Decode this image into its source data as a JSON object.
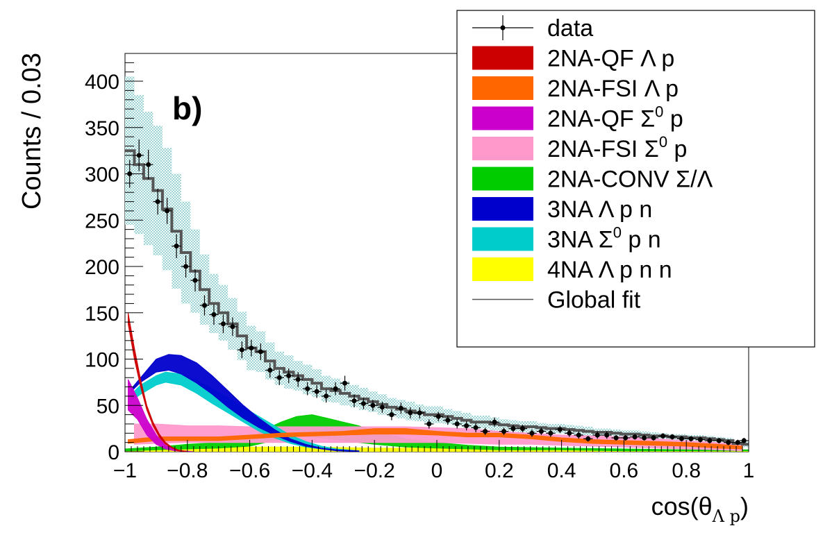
{
  "chart_data": {
    "type": "histogram",
    "panel_label": "b)",
    "ylabel": "Counts / 0.03",
    "xlabel": {
      "prefix": "cos(θ",
      "subscript": "Λ p",
      "suffix": ")"
    },
    "xlim": [
      -1,
      1
    ],
    "ylim": [
      0,
      430
    ],
    "xticks": [
      -1,
      -0.8,
      -0.6,
      -0.4,
      -0.2,
      0,
      0.2,
      0.4,
      0.6,
      0.8,
      1
    ],
    "xtick_labels": [
      "−1",
      "−0.8",
      "−0.6",
      "−0.4",
      "−0.2",
      "0",
      "0.2",
      "0.4",
      "0.6",
      "0.8",
      "1"
    ],
    "yticks": [
      0,
      50,
      100,
      150,
      200,
      250,
      300,
      350,
      400
    ],
    "ytick_labels": [
      "0",
      "50",
      "100",
      "150",
      "200",
      "250",
      "300",
      "350",
      "400"
    ],
    "legend": {
      "position": "top-right",
      "entries": [
        {
          "label": "data",
          "style": "marker",
          "color": "#000000"
        },
        {
          "label": "2NA-QF Λ p",
          "style": "box",
          "color": "#cc0000"
        },
        {
          "label": "2NA-FSI Λ p",
          "style": "box",
          "color": "#ff6600"
        },
        {
          "label": "2NA-QF Σ0 p",
          "style": "box",
          "color": "#cc00cc"
        },
        {
          "label": "2NA-FSI Σ0 p",
          "style": "box",
          "color": "#ff99cc"
        },
        {
          "label": "2NA-CONV Σ/Λ",
          "style": "box",
          "color": "#00cc00"
        },
        {
          "label": "3NA Λ p n",
          "style": "box",
          "color": "#0000cc"
        },
        {
          "label": "3NA Σ0 p n",
          "style": "box",
          "color": "#00cccc"
        },
        {
          "label": "4NA Λ p n n",
          "style": "box",
          "color": "#ffff00"
        },
        {
          "label": "Global fit",
          "style": "line",
          "color": "#555555"
        }
      ]
    },
    "data": {
      "x": [
        -0.985,
        -0.955,
        -0.925,
        -0.895,
        -0.865,
        -0.835,
        -0.805,
        -0.775,
        -0.745,
        -0.715,
        -0.685,
        -0.655,
        -0.625,
        -0.595,
        -0.565,
        -0.535,
        -0.505,
        -0.475,
        -0.445,
        -0.415,
        -0.385,
        -0.355,
        -0.325,
        -0.295,
        -0.265,
        -0.235,
        -0.205,
        -0.175,
        -0.145,
        -0.115,
        -0.085,
        -0.055,
        -0.025,
        0.005,
        0.035,
        0.065,
        0.095,
        0.125,
        0.155,
        0.185,
        0.215,
        0.245,
        0.275,
        0.305,
        0.335,
        0.365,
        0.395,
        0.425,
        0.455,
        0.485,
        0.515,
        0.545,
        0.575,
        0.605,
        0.635,
        0.665,
        0.695,
        0.725,
        0.755,
        0.785,
        0.815,
        0.845,
        0.875,
        0.905,
        0.935,
        0.965,
        0.985
      ],
      "y": [
        300,
        320,
        310,
        270,
        260,
        222,
        200,
        185,
        158,
        148,
        138,
        135,
        110,
        112,
        108,
        88,
        80,
        82,
        78,
        68,
        65,
        60,
        68,
        74,
        55,
        52,
        50,
        48,
        40,
        47,
        42,
        42,
        30,
        38,
        34,
        30,
        28,
        26,
        22,
        32,
        22,
        25,
        25,
        20,
        22,
        20,
        24,
        20,
        18,
        14,
        18,
        18,
        15,
        15,
        16,
        15,
        15,
        17,
        16,
        14,
        14,
        13,
        12,
        12,
        10,
        10,
        12
      ],
      "yerr": [
        15,
        17,
        16,
        14,
        14,
        13,
        12,
        12,
        11,
        11,
        10,
        10,
        9,
        9,
        9,
        8,
        8,
        8,
        8,
        7,
        7,
        7,
        7,
        8,
        7,
        6,
        6,
        6,
        6,
        6,
        6,
        6,
        5,
        5,
        5,
        5,
        5,
        5,
        4,
        5,
        4,
        4,
        4,
        4,
        4,
        4,
        4,
        4,
        4,
        3,
        4,
        4,
        3,
        3,
        3,
        3,
        3,
        3,
        3,
        3,
        3,
        3,
        3,
        3,
        3,
        3,
        3
      ]
    },
    "global_fit": {
      "edges": [
        -1,
        -0.97,
        -0.94,
        -0.91,
        -0.88,
        -0.85,
        -0.82,
        -0.79,
        -0.76,
        -0.73,
        -0.7,
        -0.67,
        -0.64,
        -0.61,
        -0.58,
        -0.55,
        -0.52,
        -0.49,
        -0.46,
        -0.43,
        -0.4,
        -0.37,
        -0.34,
        -0.31,
        -0.28,
        -0.25,
        -0.22,
        -0.19,
        -0.16,
        -0.13,
        -0.1,
        -0.07,
        -0.04,
        -0.01,
        0.02,
        0.05,
        0.08,
        0.11,
        0.14,
        0.17,
        0.2,
        0.23,
        0.26,
        0.29,
        0.32,
        0.35,
        0.38,
        0.41,
        0.44,
        0.47,
        0.5,
        0.53,
        0.56,
        0.59,
        0.62,
        0.65,
        0.68,
        0.71,
        0.74,
        0.77,
        0.8,
        0.83,
        0.86,
        0.89,
        0.92,
        0.95,
        0.98,
        1
      ],
      "values": [
        325,
        310,
        295,
        282,
        262,
        238,
        215,
        195,
        175,
        160,
        150,
        138,
        125,
        112,
        108,
        98,
        90,
        86,
        82,
        78,
        74,
        68,
        66,
        63,
        60,
        57,
        54,
        51,
        48,
        46,
        44,
        42,
        40,
        40,
        38,
        36,
        34,
        32,
        32,
        30,
        29,
        28,
        27,
        27,
        26,
        25,
        25,
        24,
        23,
        22,
        21,
        21,
        20,
        19,
        19,
        18,
        17,
        17,
        16,
        16,
        15,
        15,
        14,
        13,
        12,
        9,
        8
      ],
      "band_halfwidth": [
        80,
        75,
        72,
        70,
        66,
        62,
        55,
        45,
        38,
        32,
        30,
        28,
        26,
        24,
        22,
        20,
        18,
        18,
        16,
        16,
        15,
        14,
        13,
        13,
        12,
        12,
        11,
        11,
        10,
        10,
        10,
        9,
        9,
        9,
        8,
        8,
        8,
        7,
        7,
        7,
        6,
        6,
        6,
        6,
        5,
        5,
        5,
        5,
        5,
        5,
        4,
        4,
        4,
        4,
        4,
        4,
        4,
        3,
        3,
        3,
        3,
        3,
        3,
        3,
        3,
        3,
        3
      ]
    },
    "components": [
      {
        "name": "4NA Λ p n n",
        "color": "#ffff00",
        "x": [
          -1,
          -0.8,
          -0.6,
          -0.4,
          -0.2,
          0,
          0.2,
          0.4,
          0.6,
          0.8,
          1
        ],
        "low": [
          0,
          0,
          0,
          0,
          0,
          0,
          0,
          0,
          0,
          0,
          0
        ],
        "high": [
          2,
          4,
          5,
          5,
          4,
          4,
          3,
          3,
          2,
          2,
          1
        ]
      },
      {
        "name": "2NA-CONV Σ/Λ",
        "color": "#00cc00",
        "x": [
          -1,
          -0.9,
          -0.8,
          -0.7,
          -0.6,
          -0.55,
          -0.5,
          -0.45,
          -0.4,
          -0.35,
          -0.3,
          -0.25,
          -0.2,
          -0.1,
          0,
          0.1,
          0.2,
          0.4,
          0.6,
          0.8,
          1
        ],
        "low": [
          1,
          2,
          3,
          4,
          6,
          10,
          14,
          16,
          16,
          14,
          12,
          10,
          8,
          5,
          4,
          3,
          2,
          2,
          1,
          1,
          1
        ],
        "high": [
          3,
          5,
          8,
          10,
          14,
          24,
          32,
          38,
          40,
          36,
          32,
          28,
          22,
          14,
          10,
          7,
          5,
          4,
          3,
          2,
          2
        ]
      },
      {
        "name": "2NA-FSI Σ0 p",
        "color": "#ff99cc",
        "x": [
          -0.97,
          -0.9,
          -0.8,
          -0.7,
          -0.6,
          -0.5,
          -0.4,
          -0.3,
          -0.2,
          -0.1,
          0,
          0.1,
          0.2,
          0.3,
          0.4,
          0.5,
          0.6,
          0.7,
          0.8,
          0.9,
          0.98
        ],
        "low": [
          8,
          9,
          10,
          10,
          10,
          10,
          10,
          10,
          10,
          10,
          10,
          9,
          8,
          8,
          7,
          6,
          5,
          4,
          3,
          2,
          1
        ],
        "high": [
          30,
          30,
          28,
          28,
          27,
          27,
          27,
          27,
          27,
          27,
          26,
          25,
          22,
          20,
          18,
          17,
          16,
          14,
          12,
          10,
          8
        ]
      },
      {
        "name": "3NA Σ0 p n",
        "color": "#00cccc",
        "x": [
          -0.98,
          -0.95,
          -0.9,
          -0.87,
          -0.82,
          -0.77,
          -0.72,
          -0.67,
          -0.62,
          -0.57,
          -0.52,
          -0.47,
          -0.42,
          -0.37,
          -0.32,
          -0.25
        ],
        "low": [
          55,
          62,
          72,
          75,
          72,
          63,
          52,
          42,
          32,
          22,
          15,
          9,
          5,
          3,
          1,
          0
        ],
        "high": [
          62,
          72,
          82,
          86,
          84,
          77,
          68,
          58,
          48,
          38,
          28,
          18,
          11,
          6,
          3,
          1
        ]
      },
      {
        "name": "3NA Λ p n",
        "color": "#0000cc",
        "x": [
          -0.98,
          -0.95,
          -0.9,
          -0.86,
          -0.82,
          -0.77,
          -0.72,
          -0.67,
          -0.62,
          -0.57,
          -0.52,
          -0.47,
          -0.42,
          -0.37,
          -0.32,
          -0.25
        ],
        "low": [
          65,
          75,
          86,
          88,
          84,
          74,
          62,
          48,
          36,
          26,
          18,
          11,
          6,
          3,
          1,
          0
        ],
        "high": [
          68,
          80,
          100,
          105,
          104,
          96,
          82,
          66,
          50,
          36,
          24,
          14,
          8,
          4,
          2,
          1
        ]
      },
      {
        "name": "2NA-FSI Λ p",
        "color": "#ff6600",
        "x": [
          -0.99,
          -0.9,
          -0.8,
          -0.7,
          -0.6,
          -0.5,
          -0.4,
          -0.3,
          -0.2,
          -0.1,
          0,
          0.1,
          0.2,
          0.3,
          0.4,
          0.5,
          0.6,
          0.7,
          0.8,
          0.9,
          0.98
        ],
        "low": [
          9,
          12,
          12,
          12,
          14,
          16,
          17,
          18,
          19,
          19,
          18,
          16,
          16,
          14,
          11,
          9,
          8,
          7,
          6,
          4,
          3
        ],
        "high": [
          13,
          16,
          16,
          16,
          18,
          20,
          21,
          22,
          25,
          25,
          22,
          20,
          20,
          18,
          15,
          13,
          12,
          11,
          10,
          8,
          6
        ]
      },
      {
        "name": "2NA-QF Σ0 p",
        "color": "#cc00cc",
        "x": [
          -0.99,
          -0.96,
          -0.93,
          -0.9,
          -0.87,
          -0.84,
          -0.81,
          -0.78
        ],
        "low": [
          45,
          35,
          18,
          8,
          3,
          1,
          0,
          0
        ],
        "high": [
          78,
          58,
          35,
          18,
          7,
          2,
          1,
          0
        ]
      },
      {
        "name": "2NA-QF Λ p",
        "color": "#cc0000",
        "x": [
          -0.99,
          -0.97,
          -0.95,
          -0.93,
          -0.91,
          -0.89,
          -0.87,
          -0.85,
          -0.83,
          -0.8
        ],
        "low": [
          138,
          100,
          70,
          45,
          28,
          16,
          8,
          4,
          1,
          0
        ],
        "high": [
          150,
          112,
          78,
          50,
          32,
          19,
          10,
          5,
          2,
          0
        ]
      }
    ]
  }
}
